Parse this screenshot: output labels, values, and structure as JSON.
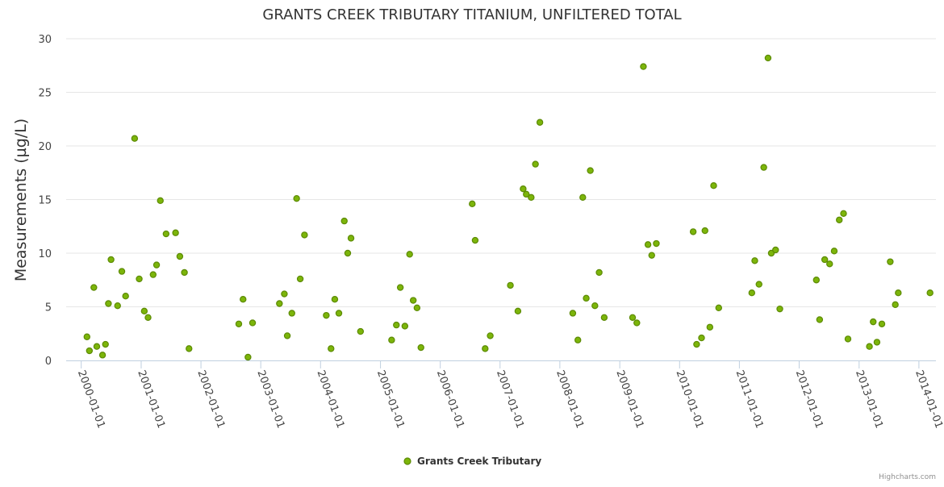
{
  "chart_data": {
    "type": "scatter",
    "title": "GRANTS CREEK TRIBUTARY TITANIUM, UNFILTERED TOTAL",
    "ylabel": "Measurements (µg/L)",
    "xlabel": "",
    "ylim": [
      0,
      30
    ],
    "yticks": [
      0,
      5,
      10,
      15,
      20,
      25,
      30
    ],
    "xlim": [
      "1999-10-01",
      "2014-04-15"
    ],
    "xticks": [
      "2000-01-01",
      "2001-01-01",
      "2002-01-01",
      "2003-01-01",
      "2004-01-01",
      "2005-01-01",
      "2006-01-01",
      "2007-01-01",
      "2008-01-01",
      "2009-01-01",
      "2010-01-01",
      "2011-01-01",
      "2012-01-01",
      "2013-01-01",
      "2014-01-01"
    ],
    "grid": "y",
    "legend_position": "bottom-center",
    "colors": {
      "marker_fill": "#7cb50a",
      "marker_stroke": "#5c8a04",
      "grid": "#e6e6e6"
    },
    "series": [
      {
        "name": "Grants Creek Tributary",
        "points": [
          {
            "x": "2000-02-05",
            "y": 2.2
          },
          {
            "x": "2000-02-20",
            "y": 0.9
          },
          {
            "x": "2000-03-18",
            "y": 6.8
          },
          {
            "x": "2000-04-05",
            "y": 1.3
          },
          {
            "x": "2000-05-10",
            "y": 0.5
          },
          {
            "x": "2000-05-28",
            "y": 1.5
          },
          {
            "x": "2000-06-15",
            "y": 5.3
          },
          {
            "x": "2000-07-01",
            "y": 9.4
          },
          {
            "x": "2000-08-10",
            "y": 5.1
          },
          {
            "x": "2000-09-05",
            "y": 8.3
          },
          {
            "x": "2000-09-28",
            "y": 6.0
          },
          {
            "x": "2000-11-22",
            "y": 20.7
          },
          {
            "x": "2000-12-20",
            "y": 7.6
          },
          {
            "x": "2001-01-20",
            "y": 4.6
          },
          {
            "x": "2001-02-12",
            "y": 4.0
          },
          {
            "x": "2001-03-15",
            "y": 8.0
          },
          {
            "x": "2001-04-05",
            "y": 8.9
          },
          {
            "x": "2001-04-28",
            "y": 14.9
          },
          {
            "x": "2001-06-02",
            "y": 11.8
          },
          {
            "x": "2001-07-30",
            "y": 11.9
          },
          {
            "x": "2001-08-25",
            "y": 9.7
          },
          {
            "x": "2001-09-22",
            "y": 8.2
          },
          {
            "x": "2001-10-20",
            "y": 1.1
          },
          {
            "x": "2002-08-20",
            "y": 3.4
          },
          {
            "x": "2002-09-15",
            "y": 5.7
          },
          {
            "x": "2002-10-15",
            "y": 0.3
          },
          {
            "x": "2002-11-12",
            "y": 3.5
          },
          {
            "x": "2003-04-25",
            "y": 5.3
          },
          {
            "x": "2003-05-25",
            "y": 6.2
          },
          {
            "x": "2003-06-12",
            "y": 2.3
          },
          {
            "x": "2003-07-10",
            "y": 4.4
          },
          {
            "x": "2003-08-08",
            "y": 15.1
          },
          {
            "x": "2003-08-30",
            "y": 7.6
          },
          {
            "x": "2003-09-25",
            "y": 11.7
          },
          {
            "x": "2004-02-05",
            "y": 4.2
          },
          {
            "x": "2004-03-05",
            "y": 1.1
          },
          {
            "x": "2004-03-28",
            "y": 5.7
          },
          {
            "x": "2004-04-22",
            "y": 4.4
          },
          {
            "x": "2004-05-25",
            "y": 13.0
          },
          {
            "x": "2004-06-15",
            "y": 10.0
          },
          {
            "x": "2004-07-05",
            "y": 11.4
          },
          {
            "x": "2004-09-01",
            "y": 2.7
          },
          {
            "x": "2005-03-10",
            "y": 1.9
          },
          {
            "x": "2005-04-08",
            "y": 3.3
          },
          {
            "x": "2005-05-02",
            "y": 6.8
          },
          {
            "x": "2005-05-30",
            "y": 3.2
          },
          {
            "x": "2005-06-28",
            "y": 9.9
          },
          {
            "x": "2005-07-20",
            "y": 5.6
          },
          {
            "x": "2005-08-12",
            "y": 4.9
          },
          {
            "x": "2005-09-05",
            "y": 1.2
          },
          {
            "x": "2006-07-15",
            "y": 14.6
          },
          {
            "x": "2006-08-02",
            "y": 11.2
          },
          {
            "x": "2006-10-02",
            "y": 1.1
          },
          {
            "x": "2006-11-02",
            "y": 2.3
          },
          {
            "x": "2007-03-05",
            "y": 7.0
          },
          {
            "x": "2007-04-20",
            "y": 4.6
          },
          {
            "x": "2007-05-22",
            "y": 16.0
          },
          {
            "x": "2007-06-10",
            "y": 15.5
          },
          {
            "x": "2007-07-10",
            "y": 15.2
          },
          {
            "x": "2007-08-05",
            "y": 18.3
          },
          {
            "x": "2007-09-01",
            "y": 22.2
          },
          {
            "x": "2008-03-20",
            "y": 4.4
          },
          {
            "x": "2008-04-20",
            "y": 1.9
          },
          {
            "x": "2008-05-20",
            "y": 15.2
          },
          {
            "x": "2008-06-10",
            "y": 5.8
          },
          {
            "x": "2008-07-05",
            "y": 17.7
          },
          {
            "x": "2008-08-02",
            "y": 5.1
          },
          {
            "x": "2008-08-28",
            "y": 8.2
          },
          {
            "x": "2008-09-28",
            "y": 4.0
          },
          {
            "x": "2009-03-20",
            "y": 4.0
          },
          {
            "x": "2009-04-15",
            "y": 3.5
          },
          {
            "x": "2009-05-25",
            "y": 27.4
          },
          {
            "x": "2009-06-22",
            "y": 10.8
          },
          {
            "x": "2009-07-15",
            "y": 9.8
          },
          {
            "x": "2009-08-12",
            "y": 10.9
          },
          {
            "x": "2010-03-25",
            "y": 12.0
          },
          {
            "x": "2010-04-15",
            "y": 1.5
          },
          {
            "x": "2010-05-15",
            "y": 2.1
          },
          {
            "x": "2010-06-05",
            "y": 12.1
          },
          {
            "x": "2010-07-05",
            "y": 3.1
          },
          {
            "x": "2010-07-28",
            "y": 16.3
          },
          {
            "x": "2010-08-28",
            "y": 4.9
          },
          {
            "x": "2011-03-18",
            "y": 6.3
          },
          {
            "x": "2011-04-05",
            "y": 9.3
          },
          {
            "x": "2011-05-01",
            "y": 7.1
          },
          {
            "x": "2011-05-30",
            "y": 18.0
          },
          {
            "x": "2011-06-25",
            "y": 28.2
          },
          {
            "x": "2011-07-15",
            "y": 10.0
          },
          {
            "x": "2011-08-10",
            "y": 10.3
          },
          {
            "x": "2011-09-05",
            "y": 4.8
          },
          {
            "x": "2012-04-15",
            "y": 7.5
          },
          {
            "x": "2012-05-05",
            "y": 3.8
          },
          {
            "x": "2012-06-05",
            "y": 9.4
          },
          {
            "x": "2012-07-05",
            "y": 9.0
          },
          {
            "x": "2012-08-02",
            "y": 10.2
          },
          {
            "x": "2012-09-02",
            "y": 13.1
          },
          {
            "x": "2012-09-28",
            "y": 13.7
          },
          {
            "x": "2012-10-25",
            "y": 2.0
          },
          {
            "x": "2013-03-05",
            "y": 1.3
          },
          {
            "x": "2013-03-28",
            "y": 3.6
          },
          {
            "x": "2013-04-20",
            "y": 1.7
          },
          {
            "x": "2013-05-20",
            "y": 3.4
          },
          {
            "x": "2013-07-10",
            "y": 9.2
          },
          {
            "x": "2013-08-10",
            "y": 5.2
          },
          {
            "x": "2013-08-28",
            "y": 6.3
          },
          {
            "x": "2014-03-10",
            "y": 6.3
          }
        ]
      }
    ]
  },
  "credits": "Highcharts.com"
}
